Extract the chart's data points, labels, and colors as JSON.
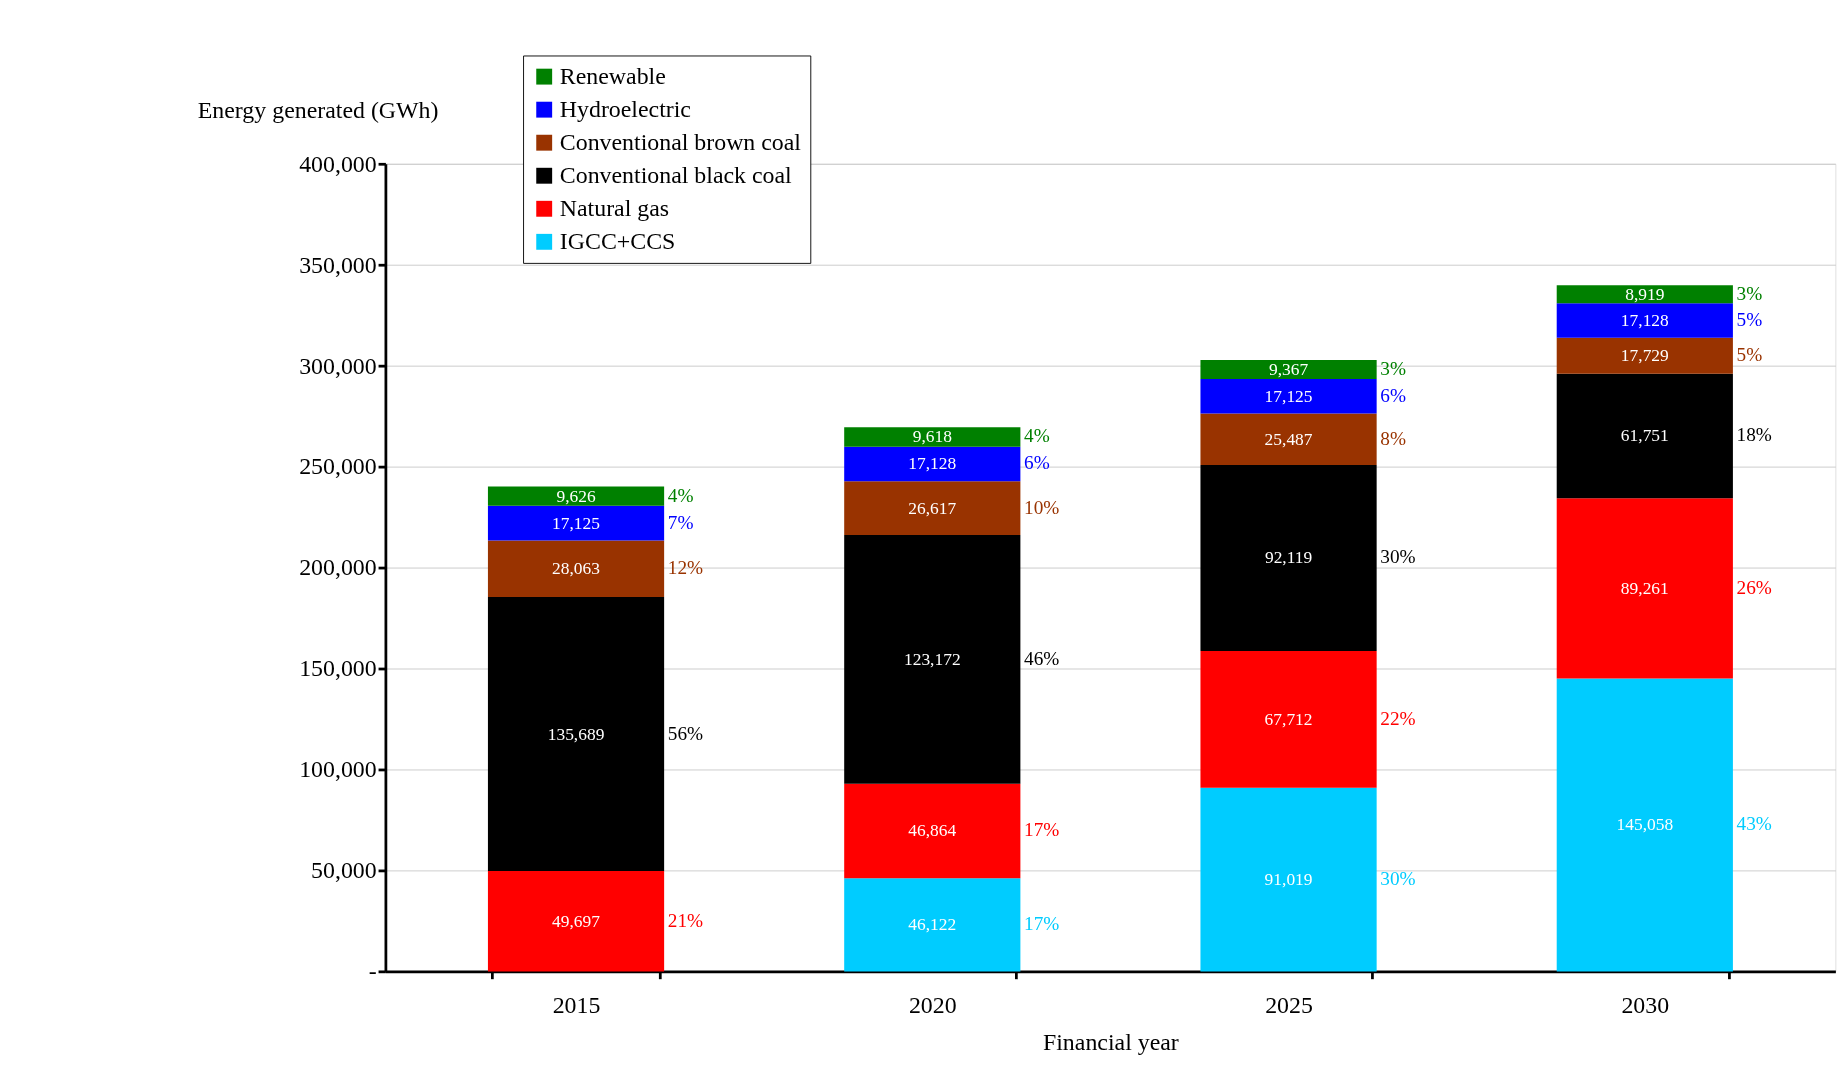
{
  "chart_data": {
    "type": "bar",
    "stacked": true,
    "xlabel": "Financial year",
    "ylabel": "Energy generated (GWh)",
    "categories": [
      "2015",
      "2020",
      "2025",
      "2030"
    ],
    "series": [
      {
        "name": "IGCC+CCS",
        "color": "#00ccff",
        "values": [
          null,
          46122,
          91019,
          145058
        ],
        "value_labels": [
          null,
          "46,122",
          "91,019",
          "145,058"
        ]
      },
      {
        "name": "Natural gas",
        "color": "#ff0000",
        "values": [
          49697,
          46864,
          67712,
          89261
        ],
        "value_labels": [
          "49,697",
          "46,864",
          "67,712",
          "89,261"
        ]
      },
      {
        "name": "Conventional black coal",
        "color": "#000000",
        "values": [
          135689,
          123172,
          92119,
          61751
        ],
        "value_labels": [
          "135,689",
          "123,172",
          "92,119",
          "61,751"
        ]
      },
      {
        "name": "Conventional brown coal",
        "color": "#993300",
        "values": [
          28063,
          26617,
          25487,
          17729
        ],
        "value_labels": [
          "28,063",
          "26,617",
          "25,487",
          "17,729"
        ]
      },
      {
        "name": "Hydroelectric",
        "color": "#0000ff",
        "values": [
          17125,
          17128,
          17125,
          17128
        ],
        "value_labels": [
          "17,125",
          "17,128",
          "17,125",
          "17,128"
        ]
      },
      {
        "name": "Renewable",
        "color": "#008000",
        "values": [
          9626,
          9618,
          9367,
          8919
        ],
        "value_labels": [
          "9,626",
          "9,618",
          "9,367",
          "8,919"
        ]
      }
    ],
    "annotations": [
      "21%",
      "56%",
      "12%",
      "7%",
      "4%",
      "17%",
      "17%",
      "46%",
      "10%",
      "6%",
      "4%",
      "30%",
      "22%",
      "30%",
      "8%",
      "6%",
      "3%",
      "43%",
      "26%",
      "18%",
      "5%",
      "5%",
      "3%"
    ],
    "ylim": [
      0,
      400000
    ],
    "yticks": [
      {
        "value": 0,
        "label": "-"
      },
      {
        "value": 50000,
        "label": "50,000"
      },
      {
        "value": 100000,
        "label": "100,000"
      },
      {
        "value": 150000,
        "label": "150,000"
      },
      {
        "value": 200000,
        "label": "200,000"
      },
      {
        "value": 250000,
        "label": "250,000"
      },
      {
        "value": 300000,
        "label": "300,000"
      },
      {
        "value": 350000,
        "label": "350,000"
      },
      {
        "value": 400000,
        "label": "400,000"
      }
    ],
    "grid": "y",
    "legend": "top left"
  }
}
